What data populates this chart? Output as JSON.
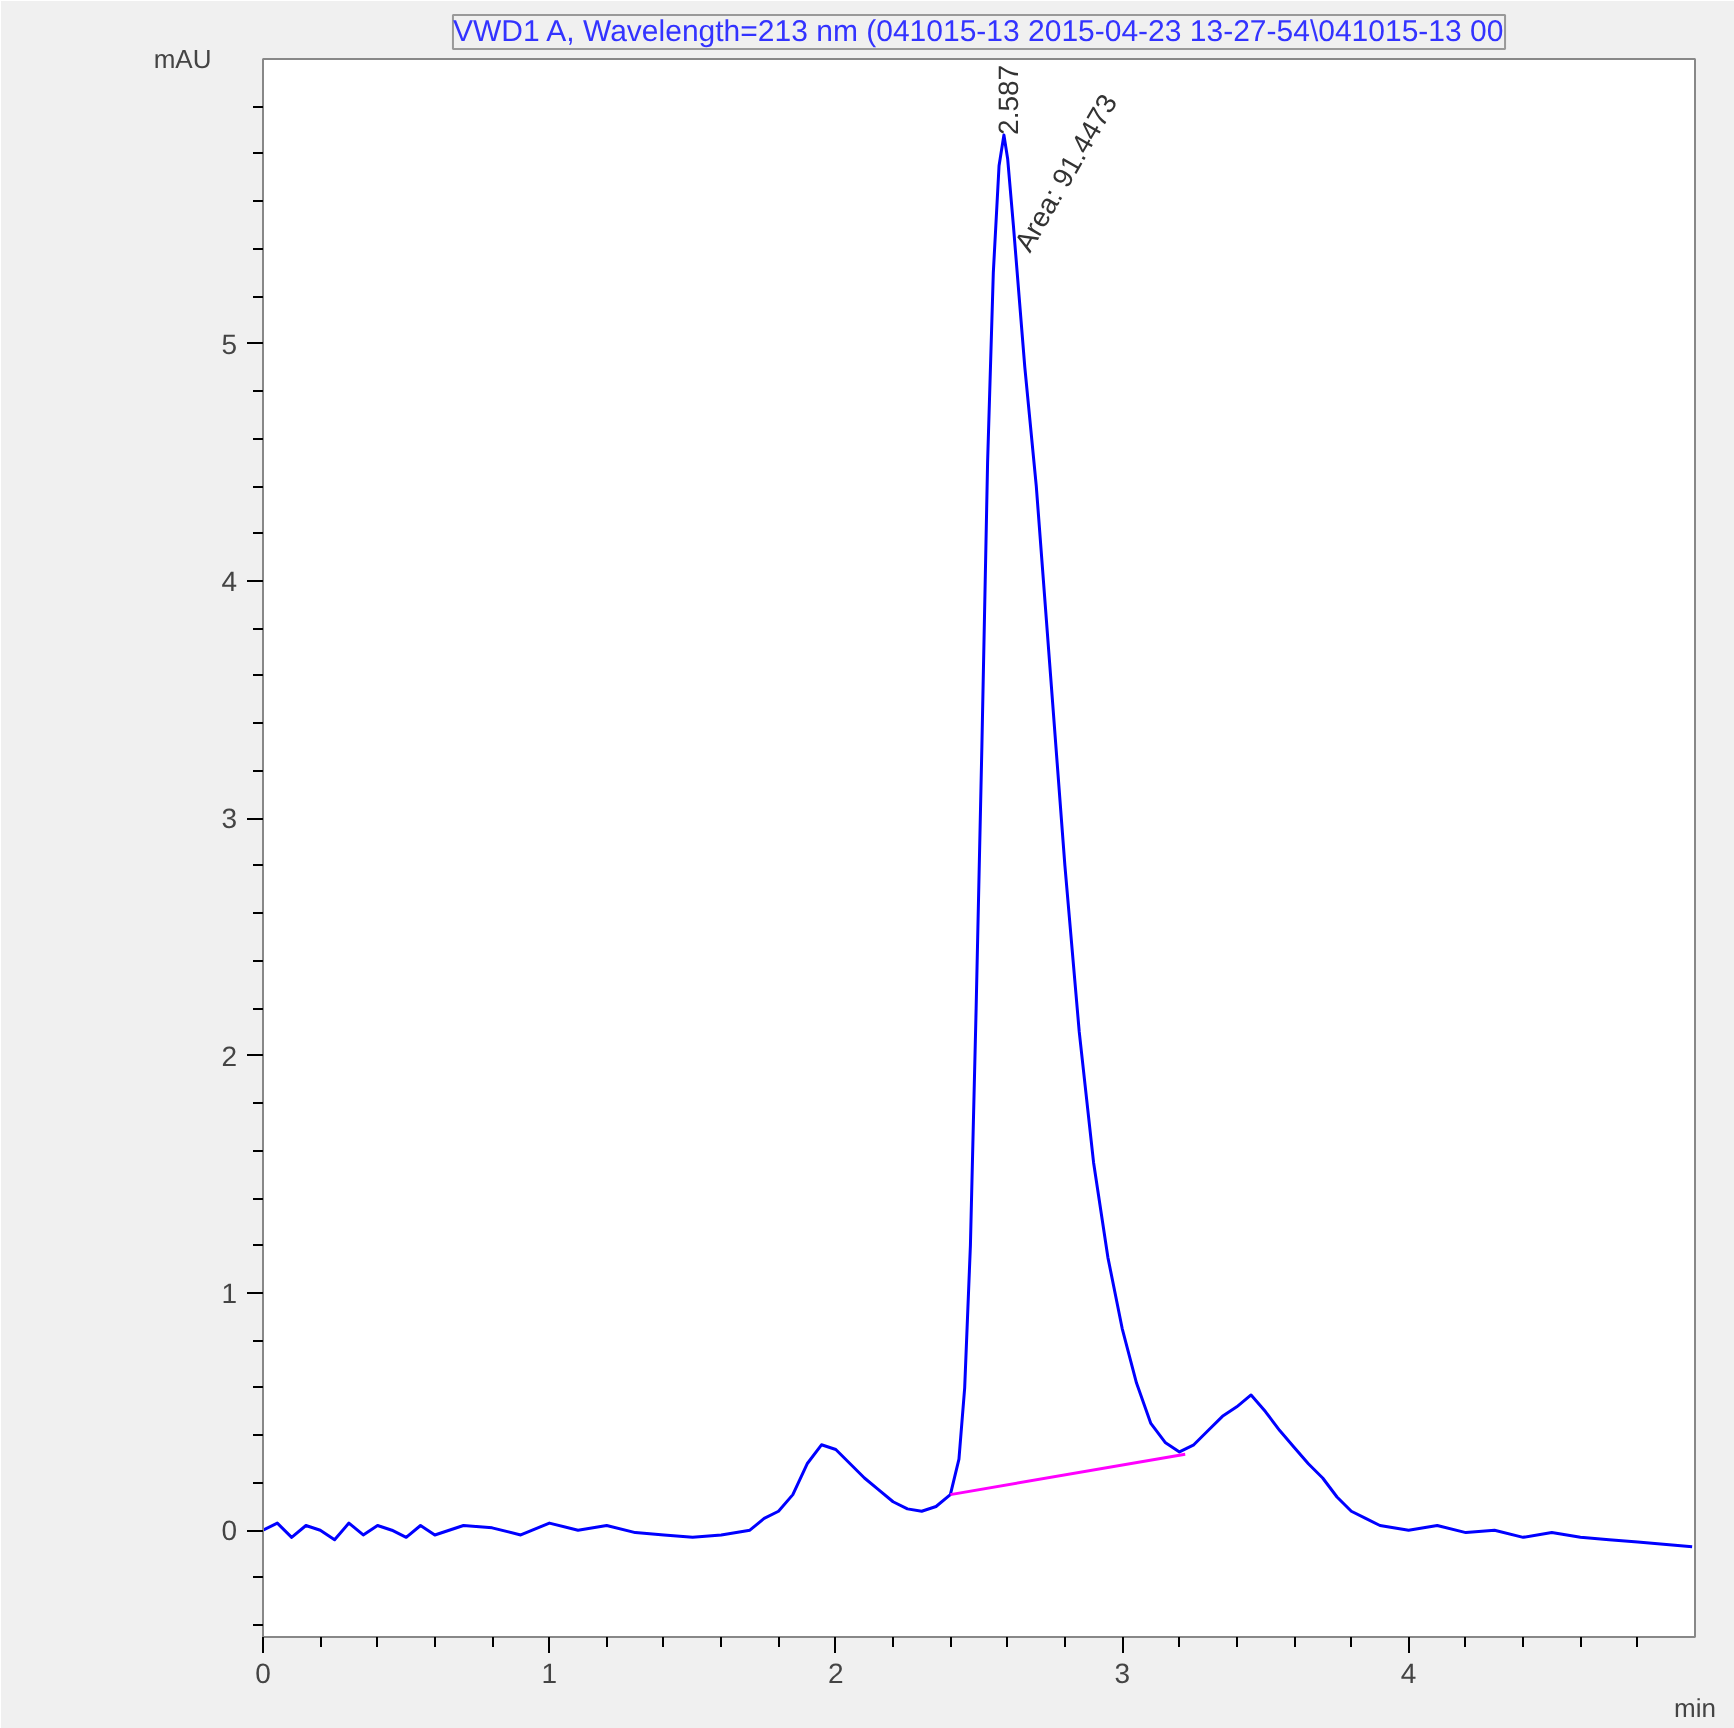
{
  "chart_data": {
    "type": "line",
    "title": "VWD1 A, Wavelength=213 nm (041015-13 2015-04-23 13-27-54\\041015-13 00",
    "xlabel": "min",
    "ylabel": "mAU",
    "xlim": [
      0,
      5.0
    ],
    "ylim": [
      -0.45,
      6.2
    ],
    "xticks": [
      0,
      {
        "value": 0.2,
        "label": null
      },
      {
        "value": 0.4,
        "label": null
      },
      {
        "value": 0.6,
        "label": null
      },
      {
        "value": 0.8,
        "label": null
      },
      1,
      {
        "value": 1.2,
        "label": null
      },
      {
        "value": 1.4,
        "label": null
      },
      {
        "value": 1.6,
        "label": null
      },
      {
        "value": 1.8,
        "label": null
      },
      2,
      {
        "value": 2.2,
        "label": null
      },
      {
        "value": 2.4,
        "label": null
      },
      {
        "value": 2.6,
        "label": null
      },
      {
        "value": 2.8,
        "label": null
      },
      3,
      {
        "value": 3.2,
        "label": null
      },
      {
        "value": 3.4,
        "label": null
      },
      {
        "value": 3.6,
        "label": null
      },
      {
        "value": 3.8,
        "label": null
      },
      4,
      {
        "value": 4.2,
        "label": null
      },
      {
        "value": 4.4,
        "label": null
      },
      {
        "value": 4.6,
        "label": null
      },
      {
        "value": 4.8,
        "label": null
      }
    ],
    "yticks": [
      {
        "value": -0.4,
        "label": null
      },
      {
        "value": -0.2,
        "label": null
      },
      0,
      {
        "value": 0.2,
        "label": null
      },
      {
        "value": 0.4,
        "label": null
      },
      {
        "value": 0.6,
        "label": null
      },
      {
        "value": 0.8,
        "label": null
      },
      1,
      {
        "value": 1.2,
        "label": null
      },
      {
        "value": 1.4,
        "label": null
      },
      {
        "value": 1.6,
        "label": null
      },
      {
        "value": 1.8,
        "label": null
      },
      2,
      {
        "value": 2.2,
        "label": null
      },
      {
        "value": 2.4,
        "label": null
      },
      {
        "value": 2.6,
        "label": null
      },
      {
        "value": 2.8,
        "label": null
      },
      3,
      {
        "value": 3.2,
        "label": null
      },
      {
        "value": 3.4,
        "label": null
      },
      {
        "value": 3.6,
        "label": null
      },
      {
        "value": 3.8,
        "label": null
      },
      4,
      {
        "value": 4.2,
        "label": null
      },
      {
        "value": 4.4,
        "label": null
      },
      {
        "value": 4.6,
        "label": null
      },
      {
        "value": 4.8,
        "label": null
      },
      5,
      {
        "value": 5.2,
        "label": null
      },
      {
        "value": 5.4,
        "label": null
      },
      {
        "value": 5.6,
        "label": null
      },
      {
        "value": 5.8,
        "label": null
      },
      {
        "value": 6.0,
        "label": null
      }
    ],
    "grid": false,
    "marker": "none",
    "line_style": "solid",
    "series": [
      {
        "color": "#0000ff",
        "x": [
          0,
          0.05,
          0.1,
          0.15,
          0.2,
          0.25,
          0.3,
          0.35,
          0.4,
          0.45,
          0.5,
          0.55,
          0.6,
          0.7,
          0.8,
          0.9,
          1.0,
          1.1,
          1.2,
          1.3,
          1.4,
          1.5,
          1.6,
          1.7,
          1.75,
          1.8,
          1.85,
          1.9,
          1.95,
          2.0,
          2.05,
          2.1,
          2.15,
          2.2,
          2.25,
          2.3,
          2.35,
          2.4,
          2.43,
          2.45,
          2.47,
          2.49,
          2.51,
          2.53,
          2.55,
          2.57,
          2.587,
          2.6,
          2.62,
          2.64,
          2.66,
          2.7,
          2.75,
          2.8,
          2.85,
          2.9,
          2.95,
          3.0,
          3.05,
          3.1,
          3.15,
          3.2,
          3.25,
          3.3,
          3.35,
          3.4,
          3.45,
          3.5,
          3.55,
          3.6,
          3.65,
          3.7,
          3.75,
          3.8,
          3.85,
          3.9,
          4.0,
          4.1,
          4.2,
          4.3,
          4.4,
          4.5,
          4.6,
          4.7,
          4.8,
          4.9,
          4.99
        ],
        "values": [
          0.0,
          0.03,
          -0.03,
          0.02,
          0.0,
          -0.04,
          0.03,
          -0.02,
          0.02,
          0.0,
          -0.03,
          0.02,
          -0.02,
          0.02,
          0.01,
          -0.02,
          0.03,
          0.0,
          0.02,
          -0.01,
          -0.02,
          -0.03,
          -0.02,
          0.0,
          0.05,
          0.08,
          0.15,
          0.28,
          0.36,
          0.34,
          0.28,
          0.22,
          0.17,
          0.12,
          0.09,
          0.08,
          0.1,
          0.15,
          0.3,
          0.6,
          1.2,
          2.2,
          3.3,
          4.5,
          5.3,
          5.75,
          5.88,
          5.78,
          5.5,
          5.2,
          4.9,
          4.4,
          3.6,
          2.8,
          2.1,
          1.55,
          1.15,
          0.85,
          0.62,
          0.45,
          0.37,
          0.33,
          0.36,
          0.42,
          0.48,
          0.52,
          0.57,
          0.5,
          0.42,
          0.35,
          0.28,
          0.22,
          0.14,
          0.08,
          0.05,
          0.02,
          0.0,
          0.02,
          -0.01,
          0.0,
          -0.03,
          -0.01,
          -0.03,
          -0.04,
          -0.05,
          -0.06,
          -0.07
        ]
      },
      {
        "color": "#ff00ff",
        "x": [
          2.4,
          3.22
        ],
        "values": [
          0.15,
          0.32
        ]
      }
    ],
    "annotations": [
      {
        "text": "2.587",
        "x": 2.587,
        "y": 5.88
      },
      {
        "text": "Area: 91.4473",
        "x": 2.62,
        "y": 5.4
      }
    ]
  }
}
